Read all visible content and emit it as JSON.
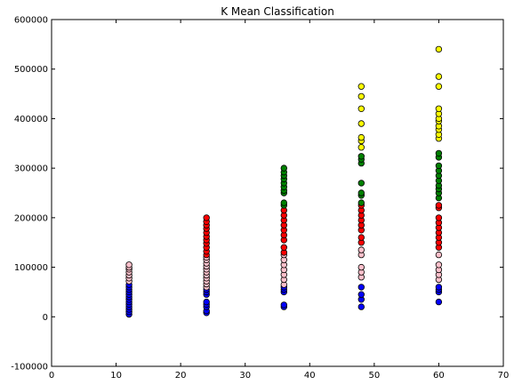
{
  "chart_data": {
    "type": "scatter",
    "title": "K Mean Classification",
    "xlabel": "",
    "ylabel": "",
    "xlim": [
      0,
      70
    ],
    "ylim": [
      -100000,
      600000
    ],
    "xticks": [
      0,
      10,
      20,
      30,
      40,
      50,
      60,
      70
    ],
    "yticks": [
      -100000,
      0,
      100000,
      200000,
      300000,
      400000,
      500000,
      600000
    ],
    "grid": false,
    "legend": "none",
    "colors": {
      "blue": "#0000ff",
      "pink": "#ffc0cb",
      "red": "#ff0000",
      "green": "#008000",
      "yellow": "#ffff00"
    },
    "series": [
      {
        "color": "blue",
        "points": [
          [
            12,
            5000
          ],
          [
            12,
            10000
          ],
          [
            12,
            15000
          ],
          [
            12,
            20000
          ],
          [
            12,
            25000
          ],
          [
            12,
            30000
          ],
          [
            12,
            35000
          ],
          [
            12,
            40000
          ],
          [
            12,
            45000
          ],
          [
            12,
            50000
          ],
          [
            12,
            55000
          ],
          [
            12,
            60000
          ],
          [
            12,
            65000
          ],
          [
            24,
            8000
          ],
          [
            24,
            12000
          ],
          [
            24,
            20000
          ],
          [
            24,
            25000
          ],
          [
            24,
            30000
          ],
          [
            24,
            45000
          ],
          [
            24,
            50000
          ],
          [
            24,
            55000
          ],
          [
            36,
            20000
          ],
          [
            36,
            24000
          ],
          [
            36,
            50000
          ],
          [
            36,
            55000
          ],
          [
            36,
            60000
          ],
          [
            48,
            20000
          ],
          [
            48,
            35000
          ],
          [
            48,
            45000
          ],
          [
            48,
            60000
          ],
          [
            60,
            30000
          ],
          [
            60,
            50000
          ],
          [
            60,
            55000
          ],
          [
            60,
            60000
          ]
        ]
      },
      {
        "color": "pink",
        "points": [
          [
            12,
            72000
          ],
          [
            12,
            78000
          ],
          [
            12,
            84000
          ],
          [
            12,
            90000
          ],
          [
            12,
            96000
          ],
          [
            12,
            100000
          ],
          [
            12,
            105000
          ],
          [
            24,
            60000
          ],
          [
            24,
            66000
          ],
          [
            24,
            72000
          ],
          [
            24,
            78000
          ],
          [
            24,
            84000
          ],
          [
            24,
            90000
          ],
          [
            24,
            96000
          ],
          [
            24,
            102000
          ],
          [
            24,
            108000
          ],
          [
            24,
            115000
          ],
          [
            24,
            120000
          ],
          [
            36,
            65000
          ],
          [
            36,
            75000
          ],
          [
            36,
            85000
          ],
          [
            36,
            95000
          ],
          [
            36,
            105000
          ],
          [
            36,
            115000
          ],
          [
            36,
            125000
          ],
          [
            48,
            80000
          ],
          [
            48,
            90000
          ],
          [
            48,
            100000
          ],
          [
            48,
            125000
          ],
          [
            48,
            135000
          ],
          [
            60,
            75000
          ],
          [
            60,
            85000
          ],
          [
            60,
            95000
          ],
          [
            60,
            105000
          ],
          [
            60,
            125000
          ]
        ]
      },
      {
        "color": "red",
        "points": [
          [
            24,
            125000
          ],
          [
            24,
            132000
          ],
          [
            24,
            140000
          ],
          [
            24,
            148000
          ],
          [
            24,
            155000
          ],
          [
            24,
            162000
          ],
          [
            24,
            170000
          ],
          [
            24,
            178000
          ],
          [
            24,
            185000
          ],
          [
            24,
            192000
          ],
          [
            24,
            200000
          ],
          [
            36,
            130000
          ],
          [
            36,
            140000
          ],
          [
            36,
            155000
          ],
          [
            36,
            165000
          ],
          [
            36,
            175000
          ],
          [
            36,
            185000
          ],
          [
            36,
            195000
          ],
          [
            36,
            205000
          ],
          [
            36,
            215000
          ],
          [
            48,
            150000
          ],
          [
            48,
            160000
          ],
          [
            48,
            175000
          ],
          [
            48,
            185000
          ],
          [
            48,
            195000
          ],
          [
            48,
            205000
          ],
          [
            48,
            215000
          ],
          [
            48,
            225000
          ],
          [
            60,
            140000
          ],
          [
            60,
            150000
          ],
          [
            60,
            160000
          ],
          [
            60,
            170000
          ],
          [
            60,
            180000
          ],
          [
            60,
            190000
          ],
          [
            60,
            200000
          ],
          [
            60,
            220000
          ],
          [
            60,
            225000
          ]
        ]
      },
      {
        "color": "green",
        "points": [
          [
            36,
            225000
          ],
          [
            36,
            230000
          ],
          [
            36,
            250000
          ],
          [
            36,
            255000
          ],
          [
            36,
            262000
          ],
          [
            36,
            270000
          ],
          [
            36,
            278000
          ],
          [
            36,
            285000
          ],
          [
            36,
            292000
          ],
          [
            36,
            300000
          ],
          [
            48,
            230000
          ],
          [
            48,
            245000
          ],
          [
            48,
            250000
          ],
          [
            48,
            270000
          ],
          [
            48,
            310000
          ],
          [
            48,
            318000
          ],
          [
            48,
            324000
          ],
          [
            60,
            240000
          ],
          [
            60,
            250000
          ],
          [
            60,
            258000
          ],
          [
            60,
            265000
          ],
          [
            60,
            275000
          ],
          [
            60,
            285000
          ],
          [
            60,
            295000
          ],
          [
            60,
            305000
          ],
          [
            60,
            322000
          ],
          [
            60,
            330000
          ]
        ]
      },
      {
        "color": "yellow",
        "points": [
          [
            48,
            342000
          ],
          [
            48,
            355000
          ],
          [
            48,
            362000
          ],
          [
            48,
            390000
          ],
          [
            48,
            420000
          ],
          [
            48,
            445000
          ],
          [
            48,
            465000
          ],
          [
            60,
            360000
          ],
          [
            60,
            368000
          ],
          [
            60,
            378000
          ],
          [
            60,
            385000
          ],
          [
            60,
            395000
          ],
          [
            60,
            400000
          ],
          [
            60,
            410000
          ],
          [
            60,
            420000
          ],
          [
            60,
            465000
          ],
          [
            60,
            485000
          ],
          [
            60,
            540000
          ]
        ]
      }
    ]
  }
}
